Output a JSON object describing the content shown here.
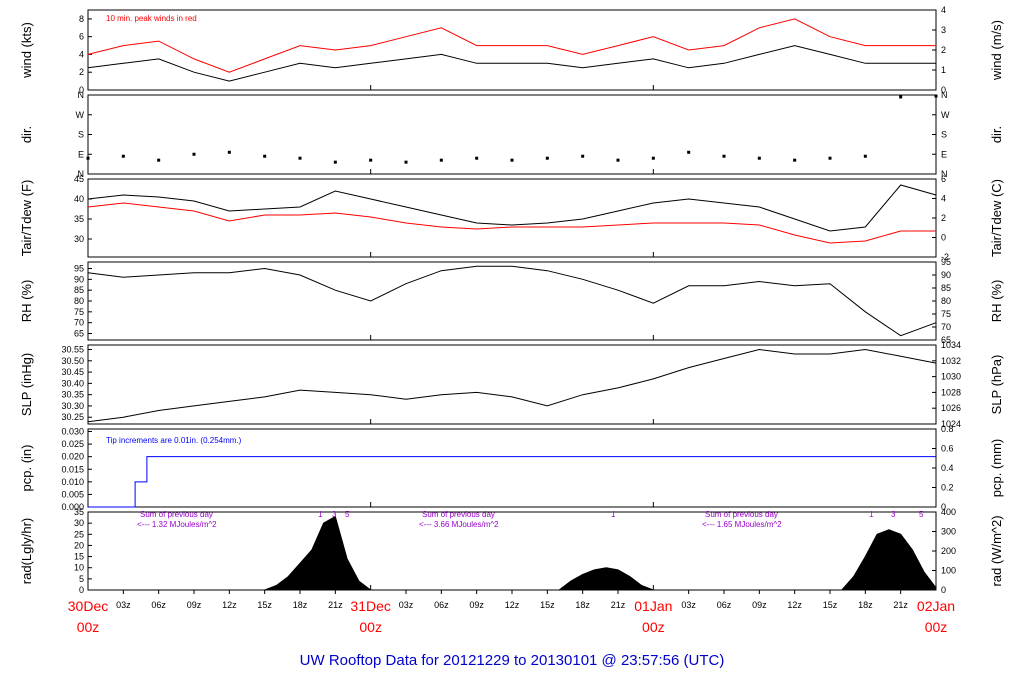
{
  "footer": {
    "title": "UW Rooftop Data for 20121229  to  20130101 @ 23:57:56  (UTC)"
  },
  "time_axis": {
    "hour_ticks": [
      "03z",
      "06z",
      "09z",
      "12z",
      "15z",
      "18z",
      "21z",
      "03z",
      "06z",
      "09z",
      "12z",
      "15z",
      "18z",
      "21z",
      "03z",
      "06z",
      "09z",
      "12z",
      "15z",
      "18z",
      "21z"
    ],
    "day_labels": [
      {
        "day": "30Dec",
        "hour": "00z"
      },
      {
        "day": "31Dec",
        "hour": "00z"
      },
      {
        "day": "01Jan",
        "hour": "00z"
      },
      {
        "day": "02Jan",
        "hour": "00z"
      }
    ]
  },
  "annotations": {
    "wind_note": "10 min. peak winds in red",
    "tip_note": "Tip increments are 0.01in. (0.254mm.)",
    "rad_notes": [
      {
        "line1": "Sum of previous day",
        "line2": "<--- 1.32 MJoules/m^2"
      },
      {
        "line1": "Sum of previous day",
        "line2": "<--- 3.66 MJoules/m^2"
      },
      {
        "line1": "Sum of previous day",
        "line2": "<--- 1.65 MJoules/m^2"
      }
    ],
    "rad_marks": [
      "1",
      "3",
      "5",
      "1",
      "1",
      "3",
      "5"
    ]
  },
  "colors": {
    "primary": "#000000",
    "secondary": "#ff0000",
    "precip": "#0000ff",
    "rad_note": "#9900cc",
    "title": "#0000cc"
  },
  "chart_data": [
    {
      "type": "line",
      "ylabel": "wind (kts)",
      "ylabel_right": "wind (m/s)",
      "ylim": [
        0,
        9
      ],
      "yticks": [
        "0",
        "2",
        "4",
        "6",
        "8"
      ],
      "yticks_right": [
        "0",
        "1",
        "2",
        "3",
        "4"
      ],
      "hours": [
        0,
        3,
        6,
        9,
        12,
        15,
        18,
        21,
        24,
        27,
        30,
        33,
        36,
        39,
        42,
        45,
        48,
        51,
        54,
        57,
        60,
        63,
        66,
        69,
        72
      ],
      "series": [
        {
          "name": "wind",
          "values": [
            2.5,
            3,
            3.5,
            2,
            1,
            2,
            3,
            2.5,
            3,
            3.5,
            4,
            3,
            3,
            3,
            2.5,
            3,
            3.5,
            2.5,
            3,
            4,
            5,
            4,
            3,
            3,
            3
          ]
        },
        {
          "name": "peak",
          "values": [
            4,
            5,
            5.5,
            3.5,
            2,
            3.5,
            5,
            4.5,
            5,
            6,
            7,
            5,
            5,
            5,
            4,
            5,
            6,
            4.5,
            5,
            7,
            8,
            6,
            5,
            5,
            5
          ]
        }
      ]
    },
    {
      "type": "scatter",
      "ylabel": "dir.",
      "ylabel_right": "dir.",
      "ylim": [
        0,
        4
      ],
      "yticks": [
        "N",
        "E",
        "S",
        "W",
        "N"
      ],
      "yticks_right": [
        "N",
        "E",
        "S",
        "W",
        "N"
      ],
      "hours": [
        0,
        3,
        6,
        9,
        12,
        15,
        18,
        21,
        24,
        27,
        30,
        33,
        36,
        39,
        42,
        45,
        48,
        51,
        54,
        57,
        60,
        63,
        66,
        69,
        72
      ],
      "series": [
        {
          "name": "dir",
          "values": [
            0.8,
            0.9,
            0.7,
            1,
            1.1,
            0.9,
            0.8,
            0.6,
            0.7,
            0.6,
            0.7,
            0.8,
            0.7,
            0.8,
            0.9,
            0.7,
            0.8,
            1.1,
            0.9,
            0.8,
            0.7,
            0.8,
            0.9,
            3.9,
            3.95
          ]
        }
      ]
    },
    {
      "type": "line",
      "ylabel": "Tair/Tdew (F)",
      "ylabel_right": "Tair/Tdew (C)",
      "ylim": [
        25.5,
        45
      ],
      "yticks": [
        "30",
        "35",
        "40",
        "45"
      ],
      "yticks_right": [
        "-2",
        "0",
        "2",
        "4",
        "6"
      ],
      "hours": [
        0,
        3,
        6,
        9,
        12,
        15,
        18,
        21,
        24,
        27,
        30,
        33,
        36,
        39,
        42,
        45,
        48,
        51,
        54,
        57,
        60,
        63,
        66,
        69,
        72
      ],
      "series": [
        {
          "name": "Tair",
          "values": [
            40,
            41,
            40.5,
            39.5,
            37,
            37.5,
            38,
            42,
            40,
            38,
            36,
            34,
            33.5,
            34,
            35,
            37,
            39,
            40,
            39,
            38,
            35,
            32,
            33,
            43.5,
            41
          ]
        },
        {
          "name": "Tdew",
          "values": [
            38,
            39,
            38,
            37,
            34.5,
            36,
            36,
            36.5,
            35.5,
            34,
            33,
            32.5,
            33,
            33,
            33,
            33.5,
            34,
            34,
            34,
            33.5,
            31,
            29,
            29.5,
            32,
            32
          ]
        }
      ]
    },
    {
      "type": "line",
      "ylabel": "RH (%)",
      "ylabel_right": "RH (%)",
      "ylim": [
        62,
        98
      ],
      "yticks": [
        "65",
        "70",
        "75",
        "80",
        "85",
        "90",
        "95"
      ],
      "yticks_right": [
        "65",
        "70",
        "75",
        "80",
        "85",
        "90",
        "95"
      ],
      "hours": [
        0,
        3,
        6,
        9,
        12,
        15,
        18,
        21,
        24,
        27,
        30,
        33,
        36,
        39,
        42,
        45,
        48,
        51,
        54,
        57,
        60,
        63,
        66,
        69,
        72
      ],
      "series": [
        {
          "name": "RH",
          "values": [
            93,
            91,
            92,
            93,
            93,
            95,
            92,
            85,
            80,
            88,
            94,
            96,
            96,
            94,
            90,
            85,
            79,
            87,
            87,
            89,
            87,
            88,
            75,
            64,
            70
          ]
        }
      ]
    },
    {
      "type": "line",
      "ylabel": "SLP (inHg)",
      "ylabel_right": "SLP (hPa)",
      "ylim": [
        30.22,
        30.57
      ],
      "yticks": [
        "30.25",
        "30.30",
        "30.35",
        "30.40",
        "30.45",
        "30.50",
        "30.55"
      ],
      "yticks_right": [
        "1024",
        "1026",
        "1028",
        "1030",
        "1032",
        "1034"
      ],
      "hours": [
        0,
        3,
        6,
        9,
        12,
        15,
        18,
        21,
        24,
        27,
        30,
        33,
        36,
        39,
        42,
        45,
        48,
        51,
        54,
        57,
        60,
        63,
        66,
        69,
        72
      ],
      "series": [
        {
          "name": "SLP",
          "values": [
            30.23,
            30.25,
            30.28,
            30.3,
            30.32,
            30.34,
            30.37,
            30.36,
            30.35,
            30.33,
            30.35,
            30.36,
            30.34,
            30.3,
            30.35,
            30.38,
            30.42,
            30.47,
            30.51,
            30.55,
            30.53,
            30.53,
            30.55,
            30.52,
            30.49
          ]
        }
      ]
    },
    {
      "type": "line",
      "ylabel": "pcp. (in)",
      "ylabel_right": "pcp. (mm)",
      "ylim": [
        0,
        0.031
      ],
      "yticks": [
        "0.000",
        "0.005",
        "0.010",
        "0.015",
        "0.020",
        "0.025",
        "0.030"
      ],
      "yticks_right": [
        "0",
        "0.2",
        "0.4",
        "0.6",
        "0.8"
      ],
      "hours": [
        0,
        3,
        4,
        5,
        72
      ],
      "series": [
        {
          "name": "pcp",
          "values": [
            0,
            0,
            0.01,
            0.02,
            0.02
          ]
        }
      ]
    },
    {
      "type": "area",
      "ylabel": "rad(Lgly/hr)",
      "ylabel_right": "rad (W/m^2)",
      "ylim": [
        0,
        35
      ],
      "yticks": [
        "0",
        "5",
        "10",
        "15",
        "20",
        "25",
        "30",
        "35"
      ],
      "yticks_right": [
        "0",
        "100",
        "200",
        "300",
        "400"
      ],
      "hours": [
        0,
        1,
        12,
        15,
        16,
        17,
        18,
        19,
        20,
        21,
        22,
        23,
        24,
        40,
        41,
        42,
        43,
        44,
        45,
        46,
        47,
        48,
        64,
        65,
        66,
        67,
        68,
        69,
        70,
        71,
        72
      ],
      "series": [
        {
          "name": "rad",
          "values": [
            0,
            0,
            0,
            0,
            2,
            6,
            12,
            18,
            30,
            33,
            14,
            4,
            0,
            0,
            4,
            7,
            9,
            10,
            9,
            6,
            2,
            0,
            0,
            6,
            15,
            25,
            27,
            25,
            18,
            8,
            1
          ]
        }
      ]
    }
  ]
}
